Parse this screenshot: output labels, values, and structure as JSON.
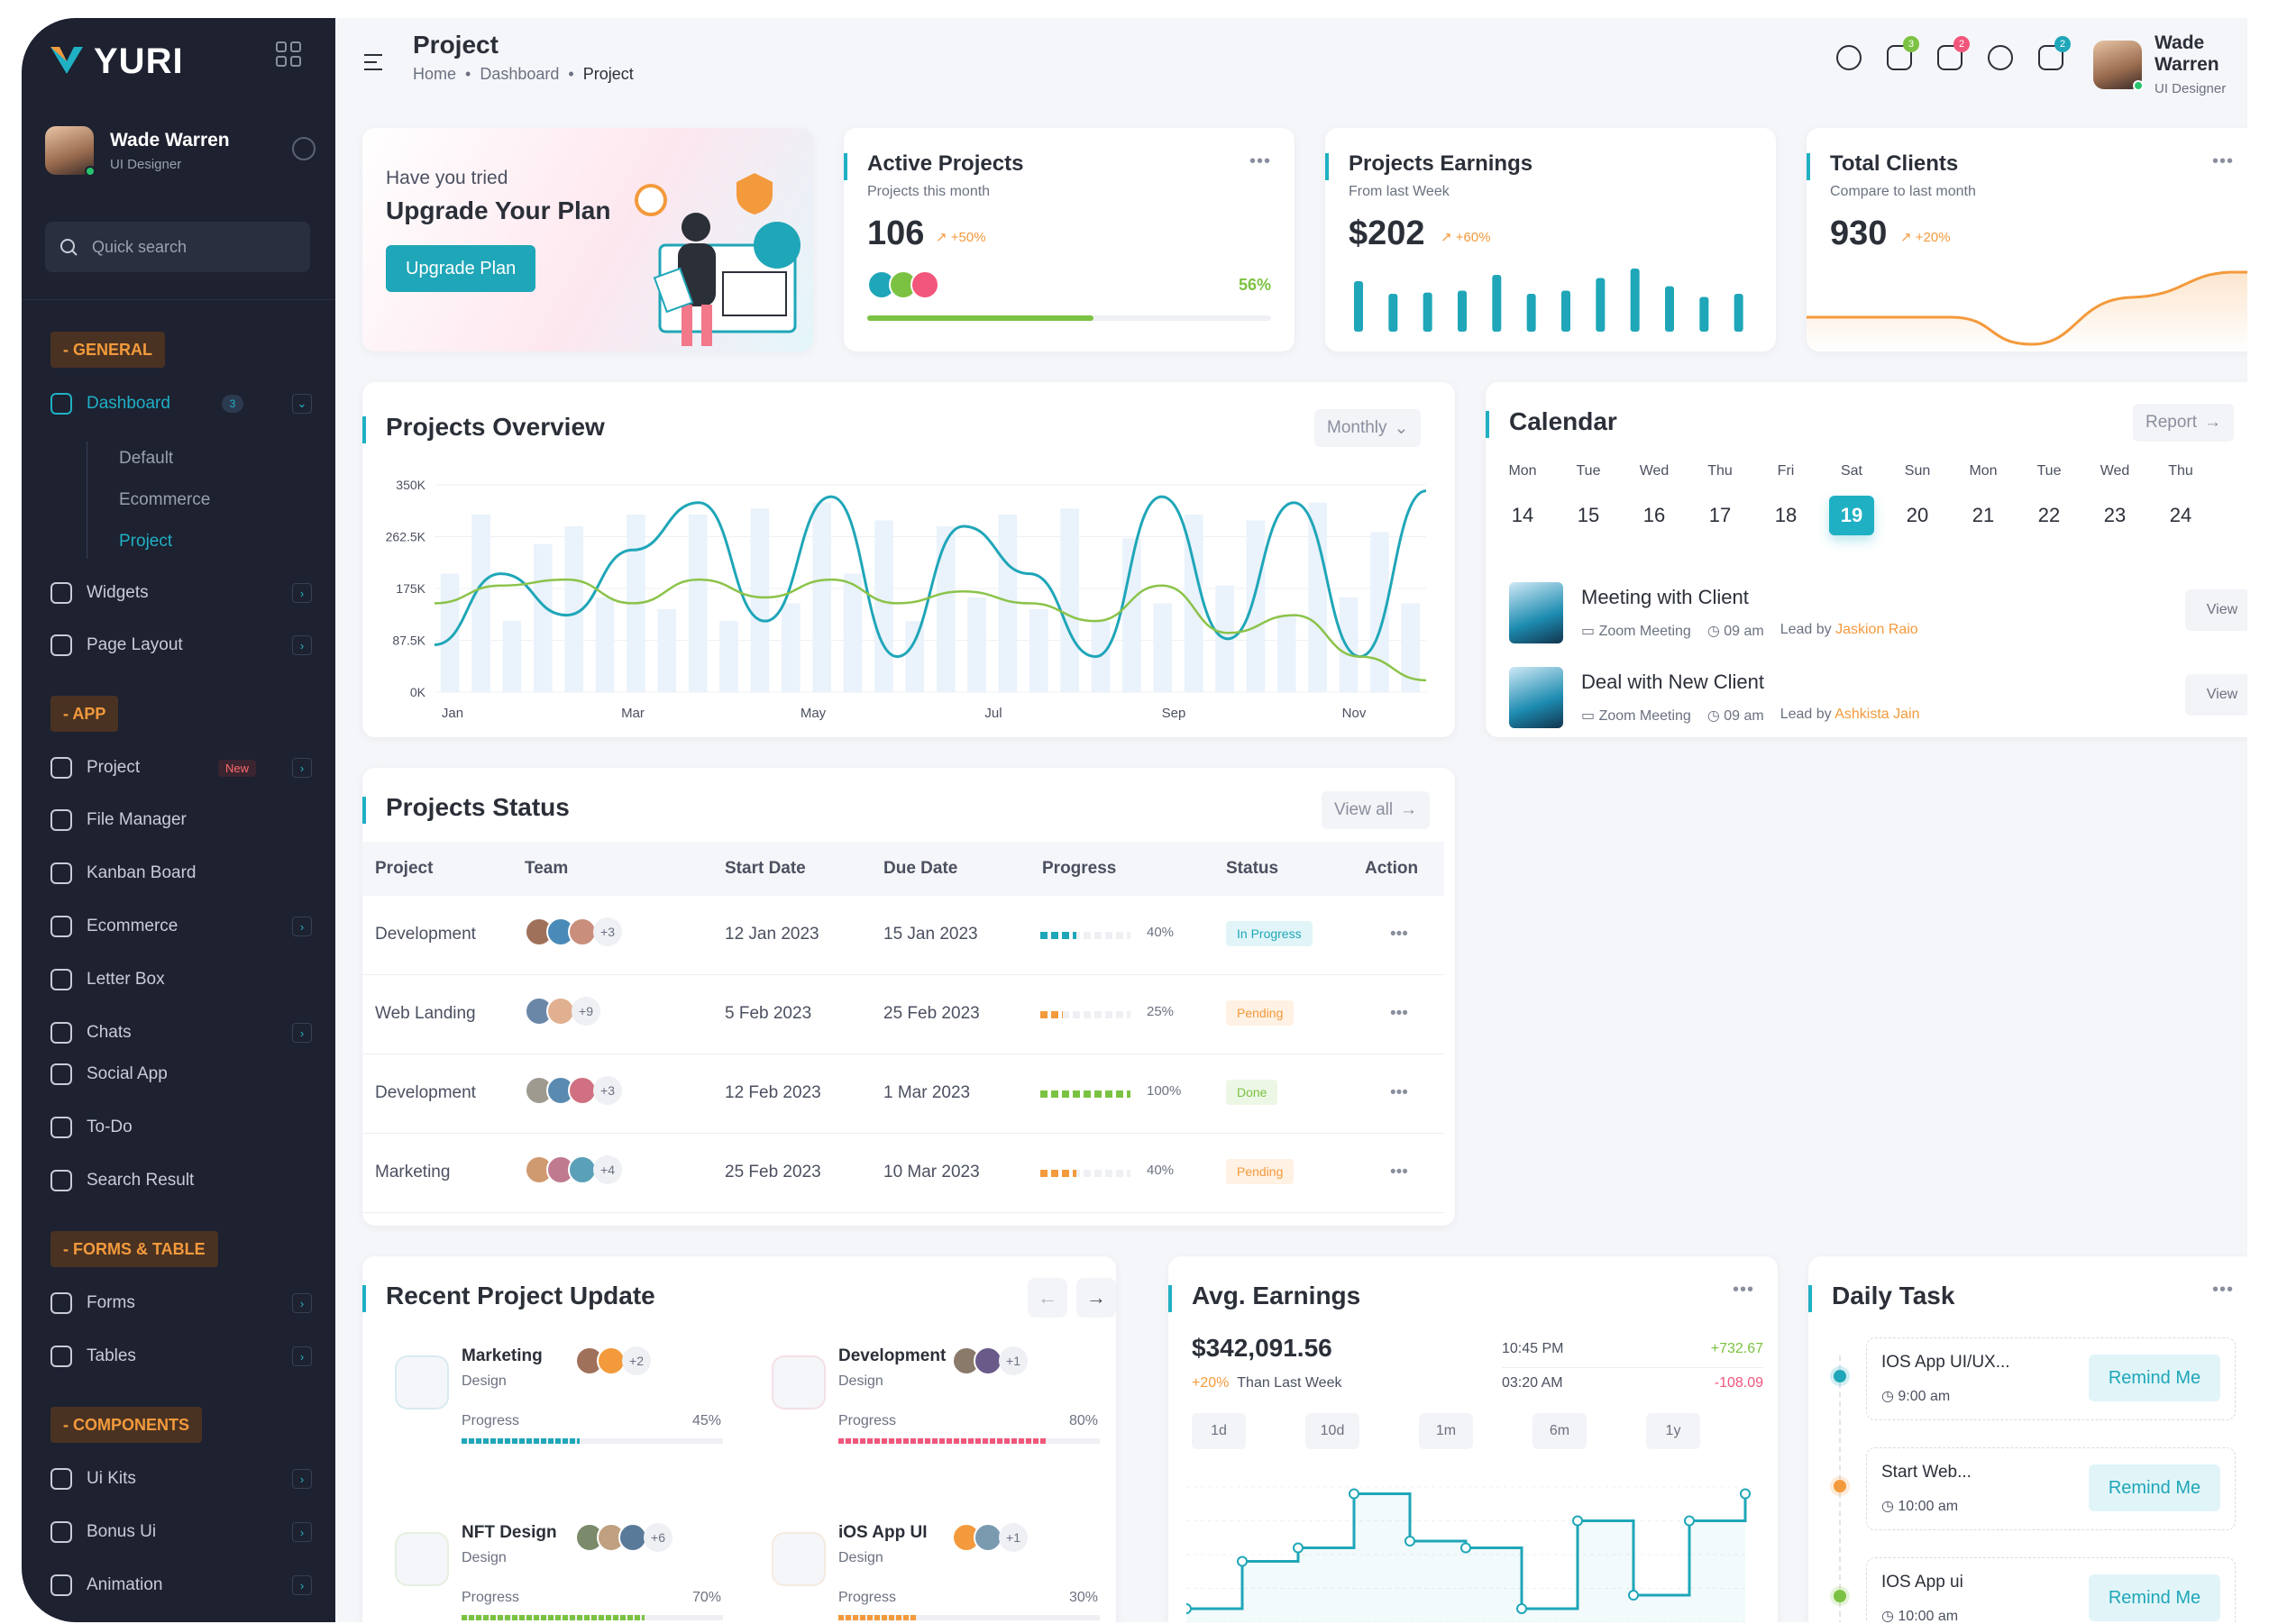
{
  "brand": {
    "name": "YURI"
  },
  "user": {
    "name": "Wade Warren",
    "role": "UI Designer"
  },
  "sidebar": {
    "search_placeholder": "Quick search",
    "general": "- GENERAL",
    "dashboard": {
      "label": "Dashboard",
      "badge": "3"
    },
    "dashboard_sub": [
      "Default",
      "Ecommerce",
      "Project"
    ],
    "widgets": "Widgets",
    "page_layout": "Page Layout",
    "app": "- APP",
    "project": {
      "label": "Project",
      "badge": "New"
    },
    "app_items": [
      "File Manager",
      "Kanban Board",
      "Ecommerce",
      "Letter Box",
      "Chats",
      "Social App",
      "To-Do",
      "Search Result"
    ],
    "forms_table": "- FORMS & TABLE",
    "forms": "Forms",
    "tables": "Tables",
    "components": "- COMPONENTS",
    "comp_items": [
      "Ui Kits",
      "Bonus Ui",
      "Animation"
    ]
  },
  "header": {
    "title": "Project",
    "crumbs": [
      "Home",
      "Dashboard",
      "Project"
    ],
    "badges": [
      "3",
      "2",
      "2"
    ]
  },
  "upgrade": {
    "line1": "Have you tried",
    "line2": "Upgrade Your Plan",
    "button": "Upgrade Plan"
  },
  "active_projects": {
    "title": "Active Projects",
    "subtitle": "Projects this month",
    "value": "106",
    "change": "+50%",
    "progress": 0.56,
    "progress_label": "56%"
  },
  "earnings": {
    "title": "Projects Earnings",
    "subtitle": "From last Week",
    "value": "$202",
    "change": "+60%",
    "bars": [
      0.8,
      0.6,
      0.62,
      0.65,
      0.9,
      0.6,
      0.65,
      0.85,
      1.0,
      0.72,
      0.55,
      0.6
    ]
  },
  "clients": {
    "title": "Total Clients",
    "subtitle": "Compare to last month",
    "value": "930",
    "change": "+20%"
  },
  "overview": {
    "title": "Projects Overview",
    "filter": "Monthly",
    "chart_data": {
      "type": "line",
      "y_ticks": [
        "350K",
        "262.5K",
        "175K",
        "87.5K",
        "0K"
      ],
      "x_ticks": [
        "Jan",
        "Mar",
        "May",
        "Jul",
        "Sep",
        "Nov"
      ],
      "ylim": [
        0,
        350000
      ],
      "series": [
        {
          "color": "#1fa6b8",
          "values": [
            80000,
            200000,
            130000,
            240000,
            320000,
            120000,
            330000,
            60000,
            280000,
            200000,
            60000,
            330000,
            90000,
            320000,
            60000,
            340000
          ]
        },
        {
          "color": "#8bc34a",
          "values": [
            150000,
            180000,
            190000,
            150000,
            190000,
            160000,
            190000,
            150000,
            170000,
            150000,
            120000,
            180000,
            100000,
            130000,
            60000,
            20000
          ]
        }
      ],
      "bars": [
        200000,
        300000,
        120000,
        250000,
        280000,
        160000,
        300000,
        140000,
        300000,
        120000,
        310000,
        150000,
        320000,
        200000,
        290000,
        120000,
        280000,
        160000,
        300000,
        140000,
        310000,
        120000,
        260000,
        150000,
        300000,
        180000,
        290000,
        130000,
        320000,
        160000,
        270000,
        150000
      ]
    }
  },
  "calendar": {
    "title": "Calendar",
    "report": "Report",
    "days": [
      {
        "n": "Mon",
        "d": "14"
      },
      {
        "n": "Tue",
        "d": "15"
      },
      {
        "n": "Wed",
        "d": "16"
      },
      {
        "n": "Thu",
        "d": "17"
      },
      {
        "n": "Fri",
        "d": "18"
      },
      {
        "n": "Sat",
        "d": "19",
        "sel": true
      },
      {
        "n": "Sun",
        "d": "20"
      },
      {
        "n": "Mon",
        "d": "21"
      },
      {
        "n": "Tue",
        "d": "22"
      },
      {
        "n": "Wed",
        "d": "23"
      },
      {
        "n": "Thu",
        "d": "24"
      }
    ],
    "meetings": [
      {
        "title": "Meeting with Client",
        "type": "Zoom Meeting",
        "time": "09 am",
        "lead_label": "Lead by",
        "lead": "Jaskion Raio",
        "view": "View"
      },
      {
        "title": "Deal with New Client",
        "type": "Zoom Meeting",
        "time": "09 am",
        "lead_label": "Lead by",
        "lead": "Ashkista Jain",
        "view": "View"
      }
    ]
  },
  "status": {
    "title": "Projects Status",
    "view_all": "View all",
    "headers": [
      "Project",
      "Team",
      "Start Date",
      "Due Date",
      "Progress",
      "Status",
      "Action"
    ],
    "rows": [
      {
        "project": "Development",
        "more": "+3",
        "start": "12 Jan 2023",
        "due": "15 Jan 2023",
        "progress": 0.4,
        "pct": "40%",
        "status": "In Progress",
        "color": "#1fa6b8",
        "bg": "#e1f5f8"
      },
      {
        "project": "Web Landing",
        "more": "+9",
        "start": "5 Feb 2023",
        "due": "25 Feb 2023",
        "progress": 0.25,
        "pct": "25%",
        "status": "Pending",
        "color": "#f39a3c",
        "bg": "#fff1e3"
      },
      {
        "project": "Development",
        "more": "+3",
        "start": "12 Feb 2023",
        "due": "1 Mar 2023",
        "progress": 1.0,
        "pct": "100%",
        "status": "Done",
        "color": "#7cc242",
        "bg": "#edf7e6"
      },
      {
        "project": "Marketing",
        "more": "+4",
        "start": "25 Feb 2023",
        "due": "10 Mar 2023",
        "progress": 0.4,
        "pct": "40%",
        "status": "Pending",
        "color": "#f39a3c",
        "bg": "#fff1e3"
      }
    ]
  },
  "recent": {
    "title": "Recent Project Update",
    "items": [
      {
        "title": "Marketing",
        "sub": "Design",
        "label": "Progress",
        "pct": "45%",
        "progress": 0.45,
        "more": "+2",
        "color": "#1fa6b8"
      },
      {
        "title": "Development",
        "sub": "Design",
        "label": "Progress",
        "pct": "80%",
        "progress": 0.8,
        "more": "+1",
        "color": "#f2567a"
      },
      {
        "title": "NFT Design",
        "sub": "Design",
        "label": "Progress",
        "pct": "70%",
        "progress": 0.7,
        "more": "+6",
        "color": "#7cc242"
      },
      {
        "title": "iOS App UI",
        "sub": "Design",
        "label": "Progress",
        "pct": "30%",
        "progress": 0.3,
        "more": "+1",
        "color": "#f39a3c"
      }
    ]
  },
  "avg": {
    "title": "Avg. Earnings",
    "value": "$342,091.56",
    "change": "+20%",
    "change_label": "Than Last Week",
    "t1": "10:45 PM",
    "v1": "+732.67",
    "t2": "03:20 AM",
    "v2": "-108.09",
    "filters": [
      "1d",
      "10d",
      "1m",
      "6m",
      "1y"
    ],
    "steps": [
      0.1,
      0.45,
      0.55,
      0.95,
      0.6,
      0.55,
      0.1,
      0.75,
      0.2,
      0.75,
      0.95
    ]
  },
  "daily": {
    "title": "Daily Task",
    "tasks": [
      {
        "title": "IOS App UI/UX...",
        "time": "9:00 am",
        "btn": "Remind Me",
        "color": "#1fa6b8"
      },
      {
        "title": "Start Web...",
        "time": "10:00 am",
        "btn": "Remind Me",
        "color": "#f39a3c"
      },
      {
        "title": "IOS App ui",
        "time": "10:00 am",
        "btn": "Remind Me",
        "color": "#7cc242"
      }
    ]
  }
}
